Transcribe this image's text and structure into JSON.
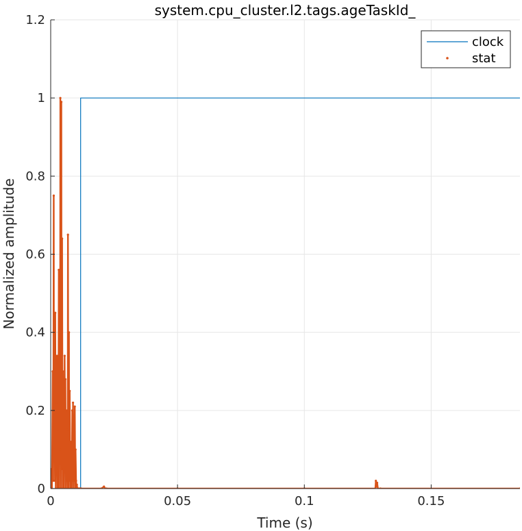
{
  "chart_data": {
    "type": "line",
    "title": "system.cpu_cluster.l2.tags.ageTaskId_",
    "xlabel": "Time (s)",
    "ylabel": "Normalized amplitude",
    "xlim": [
      0,
      0.185
    ],
    "ylim": [
      0,
      1.2
    ],
    "xticks": [
      0,
      0.05,
      0.1,
      0.15
    ],
    "xtick_labels": [
      "0",
      "0.05",
      "0.1",
      "0.15"
    ],
    "yticks": [
      0,
      0.2,
      0.4,
      0.6,
      0.8,
      1,
      1.2
    ],
    "ytick_labels": [
      "0",
      "0.2",
      "0.4",
      "0.6",
      "0.8",
      "1",
      "1.2"
    ],
    "grid": true,
    "legend_position": "top-right",
    "series": [
      {
        "name": "clock",
        "style": "line",
        "color": "#0072BD",
        "x": [
          0,
          0.0118,
          0.0118,
          0.185
        ],
        "y": [
          0,
          0,
          1,
          1
        ]
      },
      {
        "name": "stat",
        "style": "line-markers",
        "color": "#D95319",
        "x": [
          0.0,
          0.0003,
          0.0005,
          0.0008,
          0.001,
          0.0012,
          0.0013,
          0.0015,
          0.0017,
          0.0018,
          0.002,
          0.0022,
          0.0023,
          0.0025,
          0.0027,
          0.0028,
          0.003,
          0.0032,
          0.0033,
          0.0035,
          0.0037,
          0.0038,
          0.004,
          0.0042,
          0.0043,
          0.0045,
          0.0047,
          0.0048,
          0.005,
          0.0052,
          0.0053,
          0.0055,
          0.0057,
          0.0058,
          0.006,
          0.0062,
          0.0063,
          0.0065,
          0.0067,
          0.0068,
          0.007,
          0.0072,
          0.0073,
          0.0075,
          0.0077,
          0.0078,
          0.008,
          0.0082,
          0.0083,
          0.0085,
          0.0087,
          0.0088,
          0.009,
          0.0092,
          0.0093,
          0.0095,
          0.0097,
          0.0098,
          0.01,
          0.0102,
          0.0103,
          0.0105,
          0.0107,
          0.0108,
          0.011,
          0.0112,
          0.0113,
          0.0115,
          0.0117,
          0.0118,
          0.012,
          0.02,
          0.021,
          0.0215,
          0.022,
          0.05,
          0.1,
          0.128,
          0.1282,
          0.1285,
          0.1287,
          0.129,
          0.13,
          0.185
        ],
        "y": [
          0.0,
          0.05,
          0.0,
          0.3,
          0.02,
          0.75,
          0.1,
          0.28,
          0.02,
          0.45,
          0.0,
          0.22,
          0.05,
          0.34,
          0.0,
          0.15,
          0.02,
          0.56,
          0.0,
          0.34,
          0.1,
          1.0,
          0.0,
          0.99,
          0.05,
          0.64,
          0.0,
          0.3,
          0.02,
          0.2,
          0.0,
          0.34,
          0.05,
          0.28,
          0.0,
          0.2,
          0.02,
          0.15,
          0.0,
          0.65,
          0.0,
          0.4,
          0.02,
          0.25,
          0.0,
          0.12,
          0.02,
          0.1,
          0.0,
          0.2,
          0.02,
          0.22,
          0.0,
          0.18,
          0.02,
          0.21,
          0.0,
          0.1,
          0.02,
          0.0,
          0.01,
          0.0,
          0.0,
          0.0,
          0.0,
          0.0,
          0.0,
          0.0,
          0.0,
          0.0,
          0.0,
          0.0,
          0.005,
          0.0,
          0.0,
          0.0,
          0.0,
          0.0,
          0.02,
          0.005,
          0.015,
          0.0,
          0.0,
          0.0
        ]
      }
    ]
  }
}
